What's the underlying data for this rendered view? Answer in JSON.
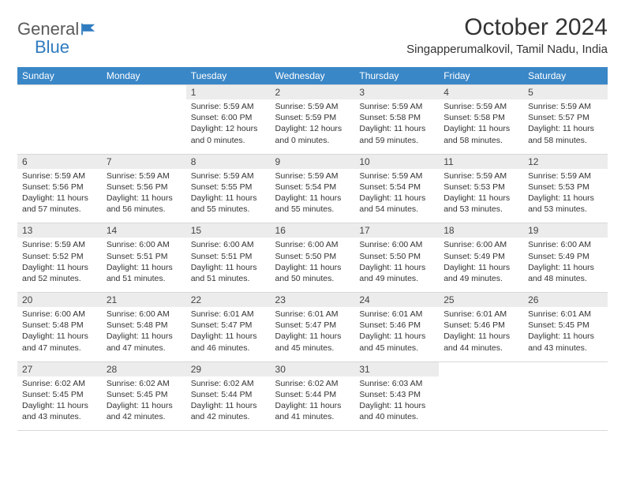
{
  "logo": {
    "text1": "General",
    "text2": "Blue"
  },
  "title": "October 2024",
  "location": "Singapperumalkovil, Tamil Nadu, India",
  "colors": {
    "header_bg": "#3a87c7",
    "header_text": "#ffffff",
    "daynum_bg": "#ececec",
    "border": "#d8d8d8",
    "logo_gray": "#5a5a5a",
    "logo_blue": "#2f7bbf"
  },
  "day_names": [
    "Sunday",
    "Monday",
    "Tuesday",
    "Wednesday",
    "Thursday",
    "Friday",
    "Saturday"
  ],
  "weeks": [
    [
      {
        "n": "",
        "sr": "",
        "ss": "",
        "dl": ""
      },
      {
        "n": "",
        "sr": "",
        "ss": "",
        "dl": ""
      },
      {
        "n": "1",
        "sr": "Sunrise: 5:59 AM",
        "ss": "Sunset: 6:00 PM",
        "dl": "Daylight: 12 hours and 0 minutes."
      },
      {
        "n": "2",
        "sr": "Sunrise: 5:59 AM",
        "ss": "Sunset: 5:59 PM",
        "dl": "Daylight: 12 hours and 0 minutes."
      },
      {
        "n": "3",
        "sr": "Sunrise: 5:59 AM",
        "ss": "Sunset: 5:58 PM",
        "dl": "Daylight: 11 hours and 59 minutes."
      },
      {
        "n": "4",
        "sr": "Sunrise: 5:59 AM",
        "ss": "Sunset: 5:58 PM",
        "dl": "Daylight: 11 hours and 58 minutes."
      },
      {
        "n": "5",
        "sr": "Sunrise: 5:59 AM",
        "ss": "Sunset: 5:57 PM",
        "dl": "Daylight: 11 hours and 58 minutes."
      }
    ],
    [
      {
        "n": "6",
        "sr": "Sunrise: 5:59 AM",
        "ss": "Sunset: 5:56 PM",
        "dl": "Daylight: 11 hours and 57 minutes."
      },
      {
        "n": "7",
        "sr": "Sunrise: 5:59 AM",
        "ss": "Sunset: 5:56 PM",
        "dl": "Daylight: 11 hours and 56 minutes."
      },
      {
        "n": "8",
        "sr": "Sunrise: 5:59 AM",
        "ss": "Sunset: 5:55 PM",
        "dl": "Daylight: 11 hours and 55 minutes."
      },
      {
        "n": "9",
        "sr": "Sunrise: 5:59 AM",
        "ss": "Sunset: 5:54 PM",
        "dl": "Daylight: 11 hours and 55 minutes."
      },
      {
        "n": "10",
        "sr": "Sunrise: 5:59 AM",
        "ss": "Sunset: 5:54 PM",
        "dl": "Daylight: 11 hours and 54 minutes."
      },
      {
        "n": "11",
        "sr": "Sunrise: 5:59 AM",
        "ss": "Sunset: 5:53 PM",
        "dl": "Daylight: 11 hours and 53 minutes."
      },
      {
        "n": "12",
        "sr": "Sunrise: 5:59 AM",
        "ss": "Sunset: 5:53 PM",
        "dl": "Daylight: 11 hours and 53 minutes."
      }
    ],
    [
      {
        "n": "13",
        "sr": "Sunrise: 5:59 AM",
        "ss": "Sunset: 5:52 PM",
        "dl": "Daylight: 11 hours and 52 minutes."
      },
      {
        "n": "14",
        "sr": "Sunrise: 6:00 AM",
        "ss": "Sunset: 5:51 PM",
        "dl": "Daylight: 11 hours and 51 minutes."
      },
      {
        "n": "15",
        "sr": "Sunrise: 6:00 AM",
        "ss": "Sunset: 5:51 PM",
        "dl": "Daylight: 11 hours and 51 minutes."
      },
      {
        "n": "16",
        "sr": "Sunrise: 6:00 AM",
        "ss": "Sunset: 5:50 PM",
        "dl": "Daylight: 11 hours and 50 minutes."
      },
      {
        "n": "17",
        "sr": "Sunrise: 6:00 AM",
        "ss": "Sunset: 5:50 PM",
        "dl": "Daylight: 11 hours and 49 minutes."
      },
      {
        "n": "18",
        "sr": "Sunrise: 6:00 AM",
        "ss": "Sunset: 5:49 PM",
        "dl": "Daylight: 11 hours and 49 minutes."
      },
      {
        "n": "19",
        "sr": "Sunrise: 6:00 AM",
        "ss": "Sunset: 5:49 PM",
        "dl": "Daylight: 11 hours and 48 minutes."
      }
    ],
    [
      {
        "n": "20",
        "sr": "Sunrise: 6:00 AM",
        "ss": "Sunset: 5:48 PM",
        "dl": "Daylight: 11 hours and 47 minutes."
      },
      {
        "n": "21",
        "sr": "Sunrise: 6:00 AM",
        "ss": "Sunset: 5:48 PM",
        "dl": "Daylight: 11 hours and 47 minutes."
      },
      {
        "n": "22",
        "sr": "Sunrise: 6:01 AM",
        "ss": "Sunset: 5:47 PM",
        "dl": "Daylight: 11 hours and 46 minutes."
      },
      {
        "n": "23",
        "sr": "Sunrise: 6:01 AM",
        "ss": "Sunset: 5:47 PM",
        "dl": "Daylight: 11 hours and 45 minutes."
      },
      {
        "n": "24",
        "sr": "Sunrise: 6:01 AM",
        "ss": "Sunset: 5:46 PM",
        "dl": "Daylight: 11 hours and 45 minutes."
      },
      {
        "n": "25",
        "sr": "Sunrise: 6:01 AM",
        "ss": "Sunset: 5:46 PM",
        "dl": "Daylight: 11 hours and 44 minutes."
      },
      {
        "n": "26",
        "sr": "Sunrise: 6:01 AM",
        "ss": "Sunset: 5:45 PM",
        "dl": "Daylight: 11 hours and 43 minutes."
      }
    ],
    [
      {
        "n": "27",
        "sr": "Sunrise: 6:02 AM",
        "ss": "Sunset: 5:45 PM",
        "dl": "Daylight: 11 hours and 43 minutes."
      },
      {
        "n": "28",
        "sr": "Sunrise: 6:02 AM",
        "ss": "Sunset: 5:45 PM",
        "dl": "Daylight: 11 hours and 42 minutes."
      },
      {
        "n": "29",
        "sr": "Sunrise: 6:02 AM",
        "ss": "Sunset: 5:44 PM",
        "dl": "Daylight: 11 hours and 42 minutes."
      },
      {
        "n": "30",
        "sr": "Sunrise: 6:02 AM",
        "ss": "Sunset: 5:44 PM",
        "dl": "Daylight: 11 hours and 41 minutes."
      },
      {
        "n": "31",
        "sr": "Sunrise: 6:03 AM",
        "ss": "Sunset: 5:43 PM",
        "dl": "Daylight: 11 hours and 40 minutes."
      },
      {
        "n": "",
        "sr": "",
        "ss": "",
        "dl": ""
      },
      {
        "n": "",
        "sr": "",
        "ss": "",
        "dl": ""
      }
    ]
  ]
}
